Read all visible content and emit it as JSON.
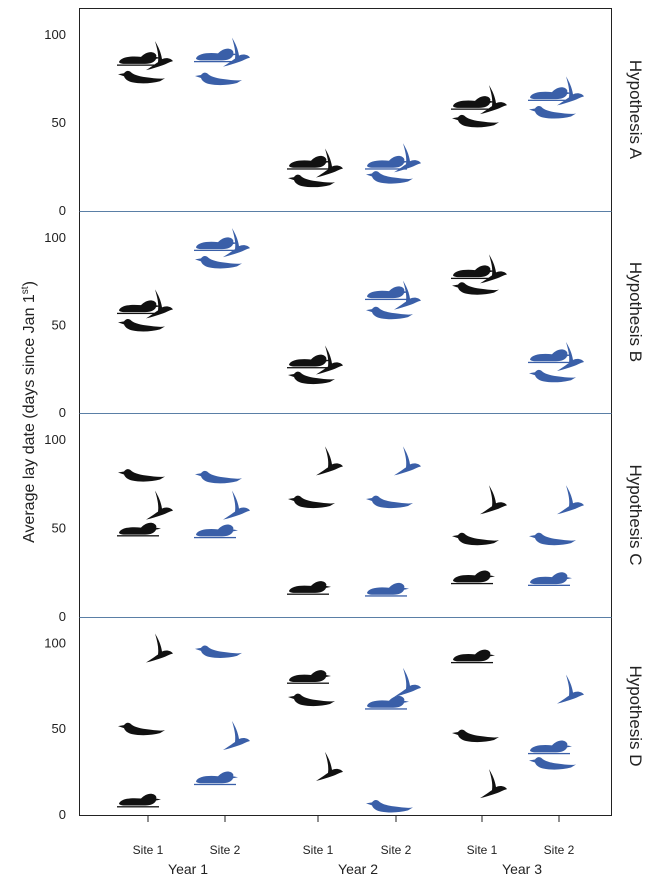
{
  "chart_data": {
    "type": "scatter",
    "ylabel": "Average lay date (days since Jan 1",
    "ylabel_superscript": "st",
    "ylabel_close": ")",
    "yticks": [
      "100",
      "50",
      "0"
    ],
    "ylim": [
      0,
      100
    ],
    "x_sites": [
      "Site 1",
      "Site 2",
      "Site 1",
      "Site 2",
      "Site 1",
      "Site 2"
    ],
    "x_years": [
      "Year 1",
      "Year 2",
      "Year 3"
    ],
    "colors": {
      "site_1": "#111111",
      "site_2": "#3a5fa8",
      "panel_border": "#5a7fa6"
    },
    "species": [
      "duck",
      "tern",
      "puffin"
    ],
    "panels": [
      {
        "name": "Hypothesis A",
        "points": [
          {
            "year": 1,
            "site": 1,
            "species": "duck",
            "y": 87
          },
          {
            "year": 1,
            "site": 1,
            "species": "tern",
            "y": 88
          },
          {
            "year": 1,
            "site": 1,
            "species": "puffin",
            "y": 76
          },
          {
            "year": 1,
            "site": 2,
            "species": "duck",
            "y": 89
          },
          {
            "year": 1,
            "site": 2,
            "species": "tern",
            "y": 90
          },
          {
            "year": 1,
            "site": 2,
            "species": "puffin",
            "y": 75
          },
          {
            "year": 2,
            "site": 1,
            "species": "duck",
            "y": 28
          },
          {
            "year": 2,
            "site": 1,
            "species": "tern",
            "y": 27
          },
          {
            "year": 2,
            "site": 1,
            "species": "puffin",
            "y": 17
          },
          {
            "year": 2,
            "site": 2,
            "species": "duck",
            "y": 28
          },
          {
            "year": 2,
            "site": 2,
            "species": "tern",
            "y": 30
          },
          {
            "year": 2,
            "site": 2,
            "species": "puffin",
            "y": 19
          },
          {
            "year": 3,
            "site": 1,
            "species": "duck",
            "y": 62
          },
          {
            "year": 3,
            "site": 1,
            "species": "tern",
            "y": 63
          },
          {
            "year": 3,
            "site": 1,
            "species": "puffin",
            "y": 51
          },
          {
            "year": 3,
            "site": 2,
            "species": "duck",
            "y": 67
          },
          {
            "year": 3,
            "site": 2,
            "species": "tern",
            "y": 68
          },
          {
            "year": 3,
            "site": 2,
            "species": "puffin",
            "y": 56
          }
        ]
      },
      {
        "name": "Hypothesis B",
        "points": [
          {
            "year": 1,
            "site": 1,
            "species": "duck",
            "y": 61
          },
          {
            "year": 1,
            "site": 1,
            "species": "tern",
            "y": 62
          },
          {
            "year": 1,
            "site": 1,
            "species": "puffin",
            "y": 50
          },
          {
            "year": 1,
            "site": 2,
            "species": "duck",
            "y": 97
          },
          {
            "year": 1,
            "site": 2,
            "species": "tern",
            "y": 97
          },
          {
            "year": 1,
            "site": 2,
            "species": "puffin",
            "y": 86
          },
          {
            "year": 2,
            "site": 1,
            "species": "duck",
            "y": 30
          },
          {
            "year": 2,
            "site": 1,
            "species": "tern",
            "y": 30
          },
          {
            "year": 2,
            "site": 1,
            "species": "puffin",
            "y": 20
          },
          {
            "year": 2,
            "site": 2,
            "species": "duck",
            "y": 69
          },
          {
            "year": 2,
            "site": 2,
            "species": "tern",
            "y": 67
          },
          {
            "year": 2,
            "site": 2,
            "species": "puffin",
            "y": 57
          },
          {
            "year": 3,
            "site": 1,
            "species": "duck",
            "y": 81
          },
          {
            "year": 3,
            "site": 1,
            "species": "tern",
            "y": 82
          },
          {
            "year": 3,
            "site": 1,
            "species": "puffin",
            "y": 71
          },
          {
            "year": 3,
            "site": 2,
            "species": "duck",
            "y": 33
          },
          {
            "year": 3,
            "site": 2,
            "species": "tern",
            "y": 32
          },
          {
            "year": 3,
            "site": 2,
            "species": "puffin",
            "y": 21
          }
        ]
      },
      {
        "name": "Hypothesis C",
        "points": [
          {
            "year": 1,
            "site": 1,
            "species": "duck",
            "y": 50
          },
          {
            "year": 1,
            "site": 1,
            "species": "tern",
            "y": 63
          },
          {
            "year": 1,
            "site": 1,
            "species": "puffin",
            "y": 80
          },
          {
            "year": 1,
            "site": 2,
            "species": "duck",
            "y": 49
          },
          {
            "year": 1,
            "site": 2,
            "species": "tern",
            "y": 63
          },
          {
            "year": 1,
            "site": 2,
            "species": "puffin",
            "y": 79
          },
          {
            "year": 2,
            "site": 1,
            "species": "duck",
            "y": 17
          },
          {
            "year": 2,
            "site": 1,
            "species": "tern",
            "y": 88
          },
          {
            "year": 2,
            "site": 1,
            "species": "puffin",
            "y": 65
          },
          {
            "year": 2,
            "site": 2,
            "species": "duck",
            "y": 16
          },
          {
            "year": 2,
            "site": 2,
            "species": "tern",
            "y": 88
          },
          {
            "year": 2,
            "site": 2,
            "species": "puffin",
            "y": 65
          },
          {
            "year": 3,
            "site": 1,
            "species": "duck",
            "y": 23
          },
          {
            "year": 3,
            "site": 1,
            "species": "tern",
            "y": 66
          },
          {
            "year": 3,
            "site": 1,
            "species": "puffin",
            "y": 44
          },
          {
            "year": 3,
            "site": 2,
            "species": "duck",
            "y": 22
          },
          {
            "year": 3,
            "site": 2,
            "species": "tern",
            "y": 66
          },
          {
            "year": 3,
            "site": 2,
            "species": "puffin",
            "y": 44
          }
        ]
      },
      {
        "name": "Hypothesis D",
        "points": [
          {
            "year": 1,
            "site": 1,
            "species": "duck",
            "y": 9
          },
          {
            "year": 1,
            "site": 1,
            "species": "tern",
            "y": 97
          },
          {
            "year": 1,
            "site": 1,
            "species": "puffin",
            "y": 50
          },
          {
            "year": 1,
            "site": 2,
            "species": "duck",
            "y": 22
          },
          {
            "year": 1,
            "site": 2,
            "species": "tern",
            "y": 46
          },
          {
            "year": 1,
            "site": 2,
            "species": "puffin",
            "y": 95
          },
          {
            "year": 2,
            "site": 1,
            "species": "duck",
            "y": 81
          },
          {
            "year": 2,
            "site": 1,
            "species": "tern",
            "y": 28
          },
          {
            "year": 2,
            "site": 1,
            "species": "puffin",
            "y": 67
          },
          {
            "year": 2,
            "site": 2,
            "species": "duck",
            "y": 66
          },
          {
            "year": 2,
            "site": 2,
            "species": "tern",
            "y": 77
          },
          {
            "year": 2,
            "site": 2,
            "species": "puffin",
            "y": 5
          },
          {
            "year": 3,
            "site": 1,
            "species": "duck",
            "y": 93
          },
          {
            "year": 3,
            "site": 1,
            "species": "tern",
            "y": 18
          },
          {
            "year": 3,
            "site": 1,
            "species": "puffin",
            "y": 46
          },
          {
            "year": 3,
            "site": 2,
            "species": "duck",
            "y": 40
          },
          {
            "year": 3,
            "site": 2,
            "species": "tern",
            "y": 73
          },
          {
            "year": 3,
            "site": 2,
            "species": "puffin",
            "y": 30
          }
        ]
      }
    ]
  }
}
